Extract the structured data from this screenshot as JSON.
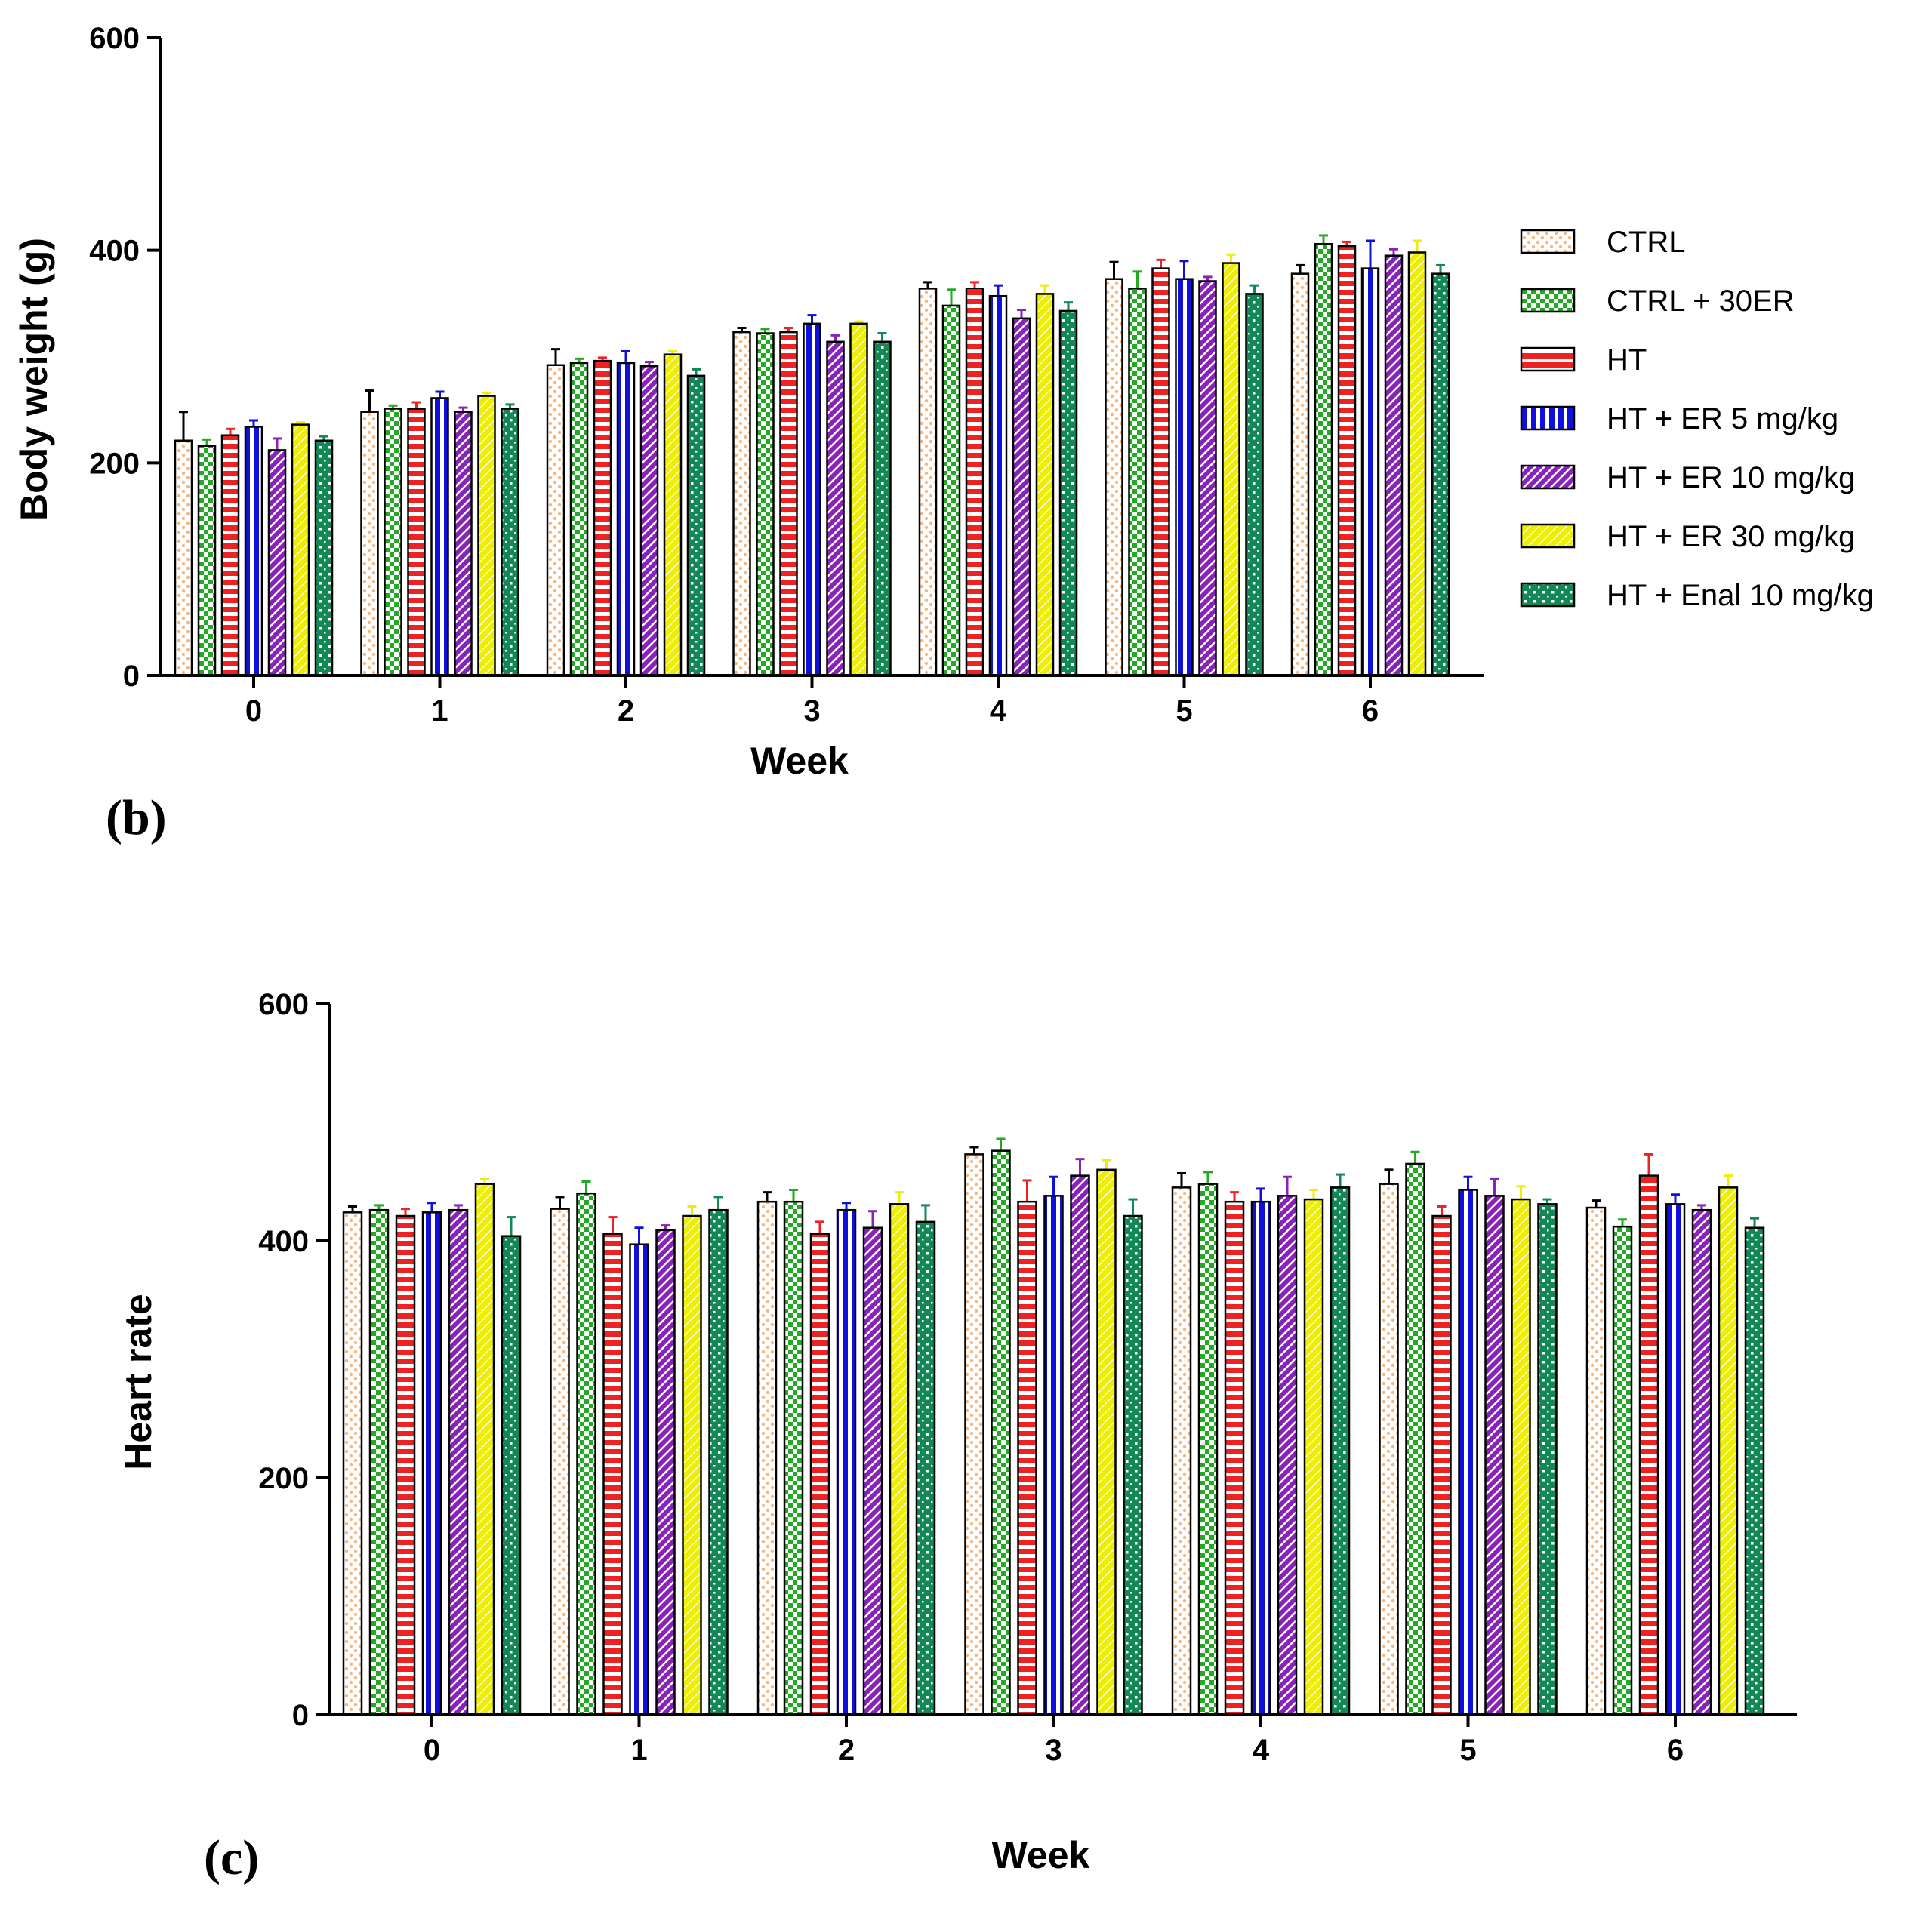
{
  "chart_data": [
    {
      "id": "b",
      "type": "bar",
      "panel_label": "(b)",
      "title": "",
      "xlabel": "Week",
      "ylabel": "Body weight (g)",
      "ylim": [
        0,
        600
      ],
      "yticks": [
        "0",
        "200",
        "400",
        "600"
      ],
      "categories": [
        "0",
        "1",
        "2",
        "3",
        "4",
        "5",
        "6"
      ],
      "legend_position": "right",
      "series": [
        {
          "name": "CTRL",
          "color": "#f4a460",
          "pattern": "dots-light",
          "values": [
            221,
            248,
            292,
            323,
            364,
            373,
            378
          ],
          "errors": [
            27,
            20,
            15,
            4,
            6,
            16,
            8
          ]
        },
        {
          "name": "CTRL + 30ER",
          "color": "#22aa22",
          "pattern": "checker",
          "values": [
            216,
            251,
            294,
            322,
            348,
            364,
            406
          ],
          "errors": [
            6,
            3,
            4,
            4,
            15,
            16,
            8
          ]
        },
        {
          "name": "HT",
          "color": "#ee2222",
          "pattern": "hlines",
          "values": [
            226,
            251,
            296,
            323,
            364,
            383,
            404
          ],
          "errors": [
            6,
            6,
            3,
            4,
            6,
            8,
            4
          ]
        },
        {
          "name": "HT + ER 5 mg/kg",
          "color": "#1010dd",
          "pattern": "vlines",
          "values": [
            234,
            261,
            294,
            331,
            357,
            373,
            383
          ],
          "errors": [
            6,
            6,
            11,
            8,
            10,
            17,
            26
          ]
        },
        {
          "name": "HT + ER 10 mg/kg",
          "color": "#8822bb",
          "pattern": "diag",
          "values": [
            212,
            248,
            291,
            314,
            336,
            371,
            395
          ],
          "errors": [
            11,
            4,
            4,
            6,
            8,
            4,
            6
          ]
        },
        {
          "name": "HT + ER 30 mg/kg",
          "color": "#eeee00",
          "pattern": "diag-light",
          "values": [
            236,
            263,
            302,
            331,
            359,
            388,
            398
          ],
          "errors": [
            2,
            3,
            3,
            2,
            8,
            8,
            11
          ]
        },
        {
          "name": "HT + Enal 10 mg/kg",
          "color": "#118855",
          "pattern": "grid",
          "values": [
            221,
            251,
            282,
            314,
            343,
            359,
            378
          ],
          "errors": [
            4,
            4,
            6,
            8,
            8,
            8,
            8
          ]
        }
      ]
    },
    {
      "id": "c",
      "type": "bar",
      "panel_label": "(c)",
      "title": "",
      "xlabel": "Week",
      "ylabel": "Heart rate",
      "ylim": [
        0,
        600
      ],
      "yticks": [
        "0",
        "200",
        "400",
        "600"
      ],
      "categories": [
        "0",
        "1",
        "2",
        "3",
        "4",
        "5",
        "6"
      ],
      "series": [
        {
          "name": "CTRL",
          "color": "#f4a460",
          "pattern": "dots-light",
          "values": [
            424,
            427,
            433,
            473,
            445,
            448,
            428
          ],
          "errors": [
            5,
            10,
            8,
            6,
            12,
            12,
            6
          ]
        },
        {
          "name": "CTRL + 30ER",
          "color": "#22aa22",
          "pattern": "checker",
          "values": [
            426,
            440,
            433,
            476,
            448,
            465,
            412
          ],
          "errors": [
            4,
            10,
            10,
            10,
            10,
            10,
            6
          ]
        },
        {
          "name": "HT",
          "color": "#ee2222",
          "pattern": "hlines",
          "values": [
            421,
            406,
            406,
            433,
            433,
            421,
            455
          ],
          "errors": [
            6,
            14,
            10,
            18,
            8,
            8,
            18
          ]
        },
        {
          "name": "HT + ER 5 mg/kg",
          "color": "#1010dd",
          "pattern": "vlines",
          "values": [
            424,
            397,
            426,
            438,
            433,
            443,
            431
          ],
          "errors": [
            8,
            14,
            6,
            16,
            11,
            11,
            8
          ]
        },
        {
          "name": "HT + ER 10 mg/kg",
          "color": "#8822bb",
          "pattern": "diag",
          "values": [
            426,
            409,
            411,
            455,
            438,
            438,
            426
          ],
          "errors": [
            4,
            4,
            14,
            14,
            16,
            14,
            4
          ]
        },
        {
          "name": "HT + ER 30 mg/kg",
          "color": "#eeee00",
          "pattern": "diag-light",
          "values": [
            448,
            421,
            431,
            460,
            435,
            435,
            445
          ],
          "errors": [
            4,
            8,
            10,
            8,
            8,
            11,
            10
          ]
        },
        {
          "name": "HT + Enal 10 mg/kg",
          "color": "#118855",
          "pattern": "grid",
          "values": [
            404,
            426,
            416,
            421,
            445,
            431,
            411
          ],
          "errors": [
            16,
            11,
            14,
            14,
            11,
            4,
            8
          ]
        }
      ]
    }
  ]
}
